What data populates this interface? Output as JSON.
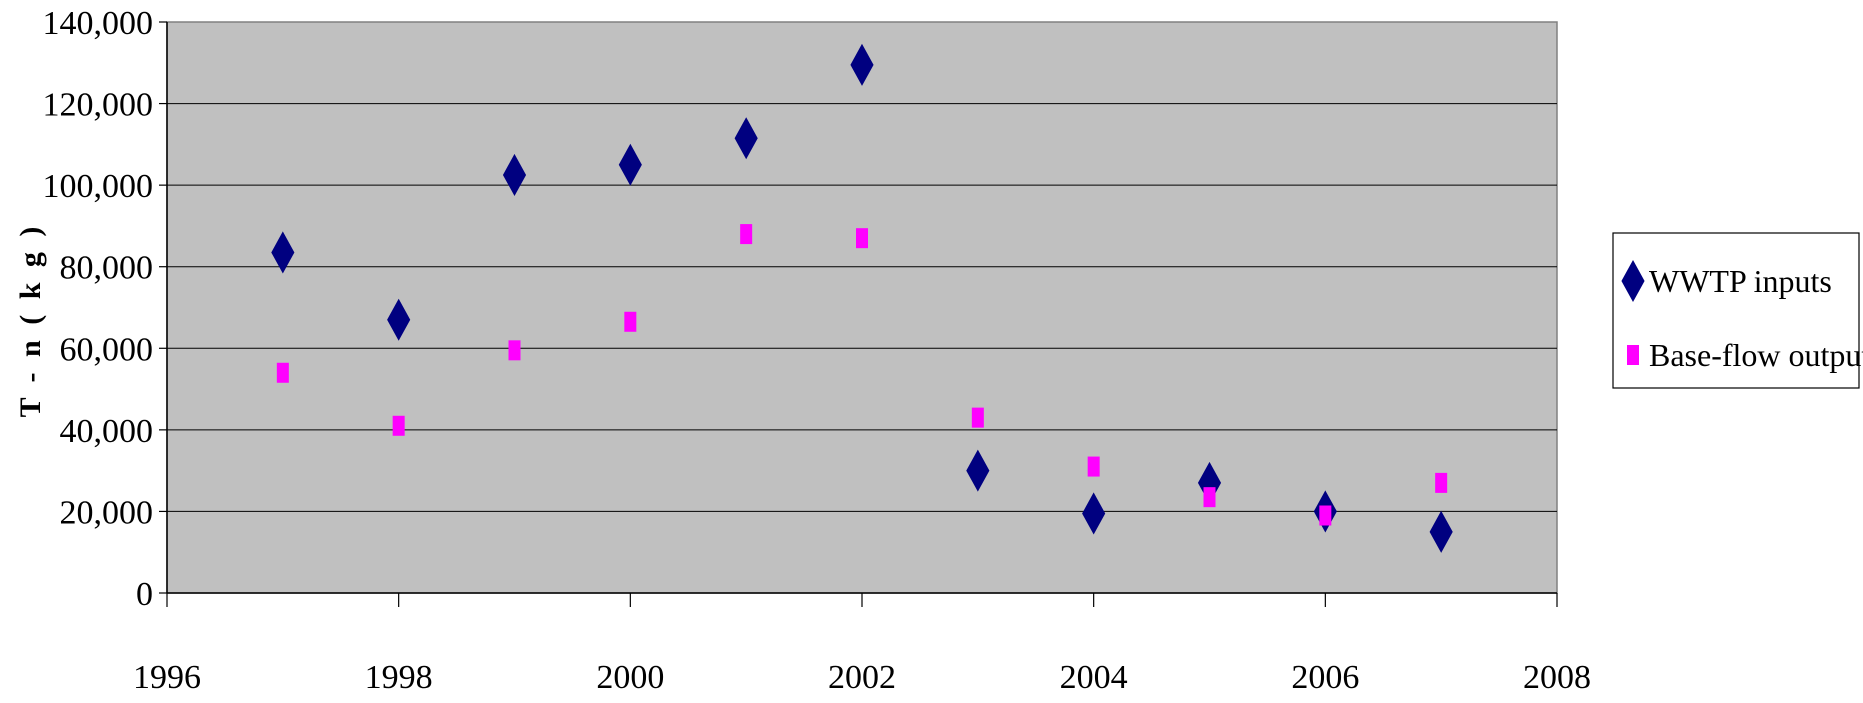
{
  "chart_data": {
    "type": "scatter",
    "title": "",
    "xlabel": "",
    "ylabel": "T - n ( k g )",
    "xlim": [
      1996,
      2008
    ],
    "ylim": [
      0,
      140000
    ],
    "x_ticks": [
      "1996",
      "1998",
      "2000",
      "2002",
      "2004",
      "2006",
      "2008"
    ],
    "y_ticks": [
      "0",
      "20,000",
      "40,000",
      "60,000",
      "80,000",
      "100,000",
      "120,000",
      "140,000"
    ],
    "grid": true,
    "legend_position": "right",
    "plot_background": "#c0c0c0",
    "series": [
      {
        "name": "WWTP inputs",
        "marker": "diamond",
        "color": "#000080",
        "x": [
          1997,
          1998,
          1999,
          2000,
          2001,
          2002,
          2003,
          2004,
          2005,
          2006,
          2007
        ],
        "y": [
          83500,
          67000,
          102500,
          105000,
          111500,
          129500,
          30000,
          19500,
          27000,
          20000,
          15000
        ]
      },
      {
        "name": "Base-flow outputs",
        "marker": "square",
        "color": "#ff00ff",
        "x": [
          1997,
          1998,
          1999,
          2000,
          2001,
          2002,
          2003,
          2004,
          2005,
          2006,
          2007
        ],
        "y": [
          54000,
          41000,
          59500,
          66500,
          88000,
          87000,
          43000,
          31000,
          23500,
          19000,
          27000
        ]
      }
    ]
  }
}
